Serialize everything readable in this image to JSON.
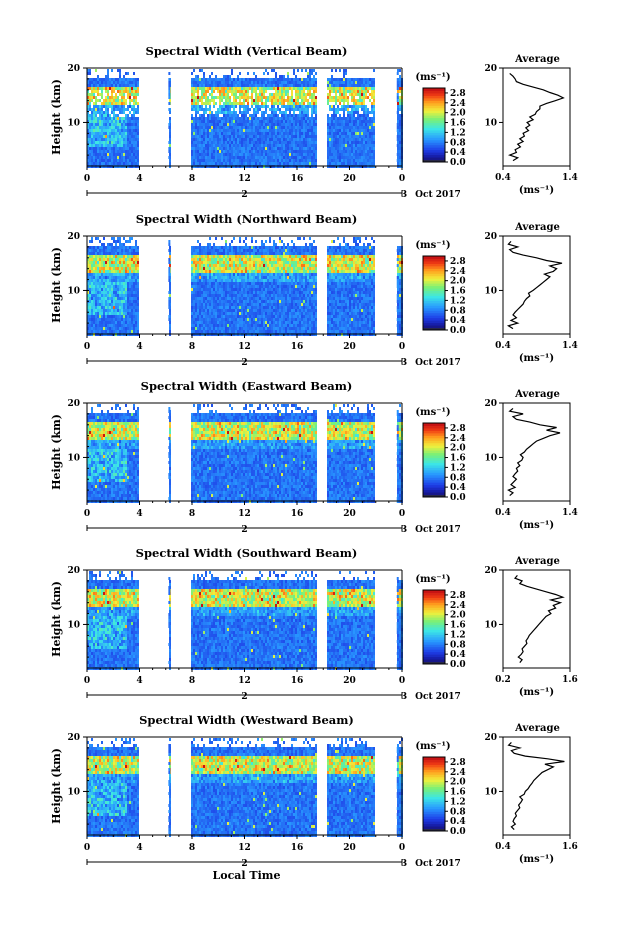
{
  "x_axis_label": "Local Time",
  "chart_data": [
    {
      "type": "heatmap",
      "title": "Spectral Width (Vertical Beam)",
      "ylabel": "Height (km)",
      "yticks": [
        "20",
        "10"
      ],
      "xticks": [
        "0",
        "4",
        "8",
        "12",
        "16",
        "20",
        "0"
      ],
      "date_marks": [
        "2",
        "3"
      ],
      "date_label": "Oct 2017",
      "ylim": [
        2,
        20
      ],
      "xlim": [
        0,
        24
      ],
      "colorbar": {
        "unit": "(ms⁻¹)",
        "ticks": [
          "2.8",
          "2.4",
          "2.0",
          "1.6",
          "1.2",
          "0.8",
          "0.4",
          "0.0"
        ],
        "range": [
          0,
          3.0
        ]
      },
      "data_gaps": [
        [
          3.9,
          6.1
        ],
        [
          6.4,
          7.8
        ],
        [
          17.5,
          18.2
        ],
        [
          21.8,
          23.5
        ]
      ],
      "average": {
        "title": "Average",
        "xlabel": "(ms⁻¹)",
        "xticks": [
          "0.4",
          "1.4"
        ],
        "xlim": [
          0.4,
          1.4
        ],
        "ylim": [
          2,
          20
        ],
        "yticks": [
          "20",
          "10"
        ],
        "height": [
          3,
          3.5,
          4,
          4.5,
          5,
          5.5,
          6,
          6.5,
          7,
          7.5,
          8,
          8.5,
          9,
          9.5,
          10,
          10.5,
          11,
          11.5,
          12,
          12.5,
          13,
          13.5,
          14,
          14.5,
          15,
          15.5,
          16,
          16.5,
          17,
          17.5,
          18,
          18.5,
          19
        ],
        "value": [
          0.55,
          0.62,
          0.5,
          0.6,
          0.58,
          0.66,
          0.62,
          0.7,
          0.65,
          0.72,
          0.7,
          0.78,
          0.74,
          0.8,
          0.76,
          0.85,
          0.8,
          0.88,
          0.9,
          0.95,
          0.95,
          1.05,
          1.18,
          1.3,
          1.22,
          1.1,
          1.0,
          0.85,
          0.7,
          0.6,
          0.58,
          0.55,
          0.5
        ]
      }
    },
    {
      "type": "heatmap",
      "title": "Spectral Width (Northward Beam)",
      "ylabel": "Height (km)",
      "yticks": [
        "20",
        "10"
      ],
      "xticks": [
        "0",
        "4",
        "8",
        "12",
        "16",
        "20",
        "0"
      ],
      "date_marks": [
        "2",
        "3"
      ],
      "date_label": "Oct 2017",
      "ylim": [
        2,
        20
      ],
      "xlim": [
        0,
        24
      ],
      "colorbar": {
        "unit": "(ms⁻¹)",
        "ticks": [
          "2.8",
          "2.4",
          "2.0",
          "1.6",
          "1.2",
          "0.8",
          "0.4",
          "0.0"
        ],
        "range": [
          0,
          3.0
        ]
      },
      "data_gaps": [
        [
          3.9,
          6.1
        ],
        [
          6.4,
          7.8
        ],
        [
          17.5,
          18.2
        ],
        [
          21.8,
          23.5
        ]
      ],
      "average": {
        "title": "Average",
        "xlabel": "(ms⁻¹)",
        "xticks": [
          "0.4",
          "1.4"
        ],
        "xlim": [
          0.4,
          1.4
        ],
        "ylim": [
          2,
          20
        ],
        "yticks": [
          "20",
          "10"
        ],
        "height": [
          3,
          3.5,
          4,
          4.5,
          5,
          5.5,
          6,
          6.5,
          7,
          7.5,
          8,
          8.5,
          9,
          9.5,
          10,
          10.5,
          11,
          11.5,
          12,
          12.5,
          13,
          13.5,
          14,
          14.5,
          15,
          15.5,
          16,
          16.5,
          17,
          17.5,
          18,
          18.5,
          19
        ],
        "value": [
          0.55,
          0.48,
          0.62,
          0.52,
          0.6,
          0.55,
          0.58,
          0.62,
          0.66,
          0.7,
          0.72,
          0.75,
          0.8,
          0.78,
          0.85,
          0.9,
          0.95,
          1.0,
          1.05,
          1.1,
          1.02,
          1.15,
          1.2,
          1.1,
          1.28,
          1.05,
          0.9,
          0.7,
          0.55,
          0.5,
          0.62,
          0.48,
          0.52
        ]
      }
    },
    {
      "type": "heatmap",
      "title": "Spectral Width (Eastward Beam)",
      "ylabel": "Height (km)",
      "yticks": [
        "20",
        "10"
      ],
      "xticks": [
        "0",
        "4",
        "8",
        "12",
        "16",
        "20",
        "0"
      ],
      "date_marks": [
        "2",
        "3"
      ],
      "date_label": "Oct 2017",
      "ylim": [
        2,
        20
      ],
      "xlim": [
        0,
        24
      ],
      "colorbar": {
        "unit": "(ms⁻¹)",
        "ticks": [
          "2.8",
          "2.4",
          "2.0",
          "1.6",
          "1.2",
          "0.8",
          "0.4",
          "0.0"
        ],
        "range": [
          0,
          3.0
        ]
      },
      "data_gaps": [
        [
          3.9,
          6.1
        ],
        [
          6.4,
          7.8
        ],
        [
          17.5,
          18.2
        ],
        [
          21.8,
          23.5
        ]
      ],
      "average": {
        "title": "Average",
        "xlabel": "(ms⁻¹)",
        "xticks": [
          "0.4",
          "1.4"
        ],
        "xlim": [
          0.4,
          1.4
        ],
        "ylim": [
          2,
          20
        ],
        "yticks": [
          "20",
          "10"
        ],
        "height": [
          3,
          3.5,
          4,
          4.5,
          5,
          5.5,
          6,
          6.5,
          7,
          7.5,
          8,
          8.5,
          9,
          9.5,
          10,
          10.5,
          11,
          11.5,
          12,
          12.5,
          13,
          13.5,
          14,
          14.5,
          15,
          15.5,
          16,
          16.5,
          17,
          17.5,
          18,
          18.5,
          19
        ],
        "value": [
          0.5,
          0.55,
          0.48,
          0.58,
          0.52,
          0.56,
          0.6,
          0.55,
          0.58,
          0.62,
          0.6,
          0.65,
          0.62,
          0.68,
          0.7,
          0.66,
          0.72,
          0.75,
          0.8,
          0.85,
          0.9,
          1.0,
          1.1,
          1.25,
          1.05,
          1.2,
          0.95,
          0.8,
          0.6,
          0.55,
          0.7,
          0.5,
          0.55
        ]
      }
    },
    {
      "type": "heatmap",
      "title": "Spectral Width (Southward Beam)",
      "ylabel": "Height (km)",
      "yticks": [
        "20",
        "10"
      ],
      "xticks": [
        "0",
        "4",
        "8",
        "12",
        "16",
        "20",
        "0"
      ],
      "date_marks": [
        "2",
        "3"
      ],
      "date_label": "Oct 2017",
      "ylim": [
        2,
        20
      ],
      "xlim": [
        0,
        24
      ],
      "colorbar": {
        "unit": "(ms⁻¹)",
        "ticks": [
          "2.8",
          "2.4",
          "2.0",
          "1.6",
          "1.2",
          "0.8",
          "0.4",
          "0.0"
        ],
        "range": [
          0,
          3.0
        ]
      },
      "data_gaps": [
        [
          3.9,
          6.1
        ],
        [
          6.4,
          7.8
        ],
        [
          17.5,
          18.2
        ],
        [
          21.8,
          23.5
        ]
      ],
      "average": {
        "title": "Average",
        "xlabel": "(ms⁻¹)",
        "xticks": [
          "0.2",
          "1.6"
        ],
        "xlim": [
          0.2,
          1.6
        ],
        "ylim": [
          2,
          20
        ],
        "yticks": [
          "20",
          "10"
        ],
        "height": [
          3,
          3.5,
          4,
          4.5,
          5,
          5.5,
          6,
          6.5,
          7,
          7.5,
          8,
          8.5,
          9,
          9.5,
          10,
          10.5,
          11,
          11.5,
          12,
          12.5,
          13,
          13.5,
          14,
          14.5,
          15,
          15.5,
          16,
          16.5,
          17,
          17.5,
          18,
          18.5,
          19
        ],
        "value": [
          0.55,
          0.6,
          0.52,
          0.58,
          0.62,
          0.6,
          0.65,
          0.7,
          0.68,
          0.72,
          0.75,
          0.8,
          0.85,
          0.9,
          0.95,
          1.0,
          1.05,
          1.1,
          1.2,
          1.15,
          1.3,
          1.25,
          1.4,
          1.2,
          1.45,
          1.3,
          1.1,
          0.9,
          0.7,
          0.55,
          0.6,
          0.45,
          0.5
        ]
      }
    },
    {
      "type": "heatmap",
      "title": "Spectral Width (Westward Beam)",
      "ylabel": "Height (km)",
      "yticks": [
        "20",
        "10"
      ],
      "xticks": [
        "0",
        "4",
        "8",
        "12",
        "16",
        "20",
        "0"
      ],
      "date_marks": [
        "2",
        "3"
      ],
      "date_label": "Oct 2017",
      "ylim": [
        2,
        20
      ],
      "xlim": [
        0,
        24
      ],
      "colorbar": {
        "unit": "(ms⁻¹)",
        "ticks": [
          "2.8",
          "2.4",
          "2.0",
          "1.6",
          "1.2",
          "0.8",
          "0.4",
          "0.0"
        ],
        "range": [
          0,
          3.0
        ]
      },
      "data_gaps": [
        [
          3.9,
          6.1
        ],
        [
          6.4,
          7.8
        ],
        [
          17.5,
          18.2
        ],
        [
          21.8,
          23.5
        ]
      ],
      "average": {
        "title": "Average",
        "xlabel": "(ms⁻¹)",
        "xticks": [
          "0.4",
          "1.6"
        ],
        "xlim": [
          0.4,
          1.6
        ],
        "ylim": [
          2,
          20
        ],
        "yticks": [
          "20",
          "10"
        ],
        "height": [
          3,
          3.5,
          4,
          4.5,
          5,
          5.5,
          6,
          6.5,
          7,
          7.5,
          8,
          8.5,
          9,
          9.5,
          10,
          10.5,
          11,
          11.5,
          12,
          12.5,
          13,
          13.5,
          14,
          14.5,
          15,
          15.5,
          16,
          16.5,
          17,
          17.5,
          18,
          18.5,
          19
        ],
        "value": [
          0.6,
          0.55,
          0.62,
          0.58,
          0.6,
          0.64,
          0.62,
          0.66,
          0.7,
          0.68,
          0.72,
          0.75,
          0.7,
          0.78,
          0.8,
          0.85,
          0.88,
          0.92,
          0.95,
          1.0,
          1.05,
          1.1,
          1.2,
          1.3,
          1.15,
          1.5,
          1.2,
          0.8,
          0.6,
          0.55,
          0.7,
          0.5,
          0.55
        ]
      }
    }
  ]
}
